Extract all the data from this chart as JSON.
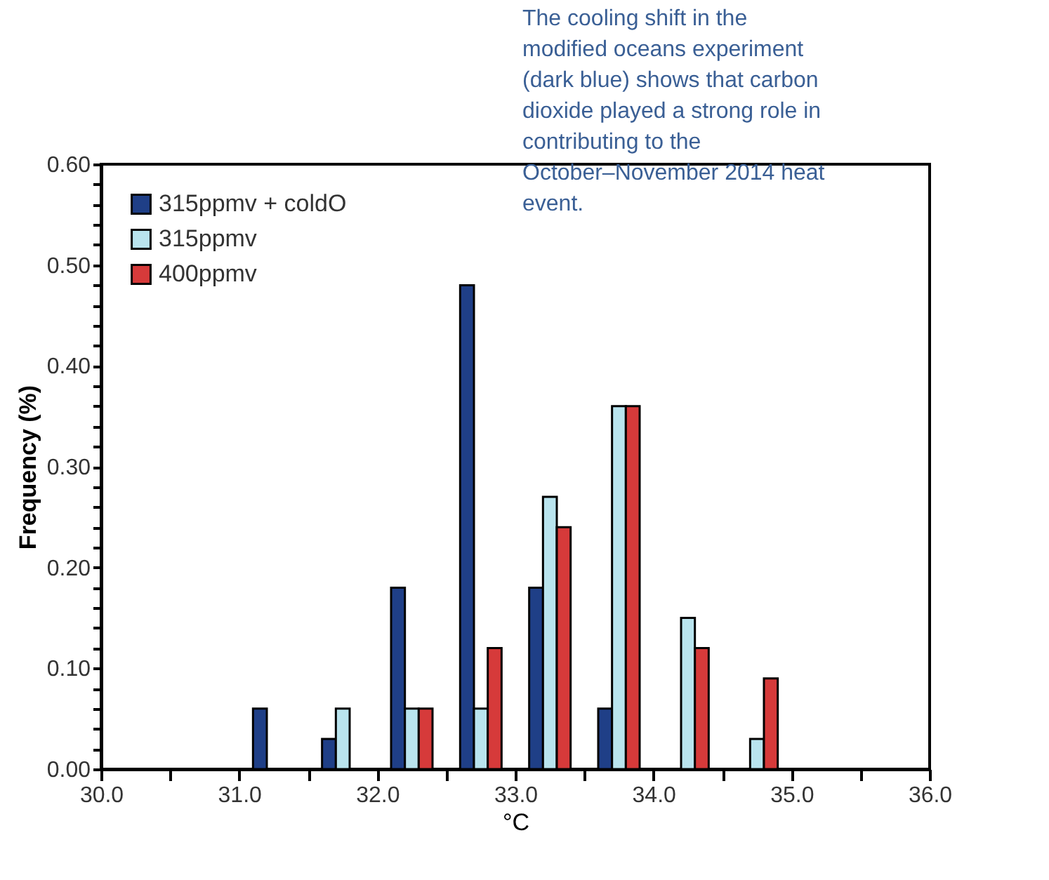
{
  "chart_data": {
    "type": "bar",
    "xlabel": "°C",
    "ylabel": "Frequency (%)",
    "annotations": [
      "The cooling shift in the modified oceans experiment (dark blue) shows that carbon dioxide played a strong role in contributing to the October–November 2014 heat event."
    ],
    "series": [
      {
        "name": "315ppmv + coldO",
        "color": "#1f3f87",
        "x": [
          31.15,
          31.65,
          32.15,
          32.65,
          33.15,
          33.65
        ],
        "values": [
          0.06,
          0.03,
          0.18,
          0.48,
          0.18,
          0.06
        ]
      },
      {
        "name": "315ppmv",
        "color": "#b9e4ee",
        "x": [
          31.75,
          32.25,
          32.75,
          33.25,
          33.75,
          34.25,
          34.75
        ],
        "values": [
          0.06,
          0.06,
          0.06,
          0.27,
          0.36,
          0.15,
          0.03
        ]
      },
      {
        "name": "400ppmv",
        "color": "#d63a3a",
        "x": [
          32.35,
          32.85,
          33.35,
          33.85,
          34.35,
          34.85
        ],
        "values": [
          0.06,
          0.12,
          0.24,
          0.36,
          0.12,
          0.09
        ]
      }
    ],
    "xlim": [
      30,
      36
    ],
    "xticks": [
      {
        "value": 30,
        "label": "30.0"
      },
      {
        "value": 30.5,
        "label": null
      },
      {
        "value": 31,
        "label": "31.0"
      },
      {
        "value": 31.5,
        "label": null
      },
      {
        "value": 32,
        "label": "32.0"
      },
      {
        "value": 32.5,
        "label": null
      },
      {
        "value": 33,
        "label": "33.0"
      },
      {
        "value": 33.5,
        "label": null
      },
      {
        "value": 34,
        "label": "34.0"
      },
      {
        "value": 34.5,
        "label": null
      },
      {
        "value": 35,
        "label": "35.0"
      },
      {
        "value": 35.5,
        "label": null
      },
      {
        "value": 36,
        "label": "36.0"
      }
    ],
    "ylim": [
      0,
      0.6
    ],
    "yticks": [
      {
        "value": 0,
        "label": "0.00"
      },
      {
        "value": 0.02,
        "label": null
      },
      {
        "value": 0.04,
        "label": null
      },
      {
        "value": 0.06,
        "label": null
      },
      {
        "value": 0.08,
        "label": null
      },
      {
        "value": 0.1,
        "label": "0.10"
      },
      {
        "value": 0.12,
        "label": null
      },
      {
        "value": 0.14,
        "label": null
      },
      {
        "value": 0.16,
        "label": null
      },
      {
        "value": 0.18,
        "label": null
      },
      {
        "value": 0.2,
        "label": "0.20"
      },
      {
        "value": 0.22,
        "label": null
      },
      {
        "value": 0.24,
        "label": null
      },
      {
        "value": 0.26,
        "label": null
      },
      {
        "value": 0.28,
        "label": null
      },
      {
        "value": 0.3,
        "label": "0.30"
      },
      {
        "value": 0.32,
        "label": null
      },
      {
        "value": 0.34,
        "label": null
      },
      {
        "value": 0.36,
        "label": null
      },
      {
        "value": 0.38,
        "label": null
      },
      {
        "value": 0.4,
        "label": "0.40"
      },
      {
        "value": 0.42,
        "label": null
      },
      {
        "value": 0.44,
        "label": null
      },
      {
        "value": 0.46,
        "label": null
      },
      {
        "value": 0.48,
        "label": null
      },
      {
        "value": 0.5,
        "label": "0.50"
      },
      {
        "value": 0.52,
        "label": null
      },
      {
        "value": 0.54,
        "label": null
      },
      {
        "value": 0.56,
        "label": null
      },
      {
        "value": 0.58,
        "label": null
      },
      {
        "value": 0.6,
        "label": "0.60"
      }
    ],
    "legend": "top left",
    "grid": false
  }
}
